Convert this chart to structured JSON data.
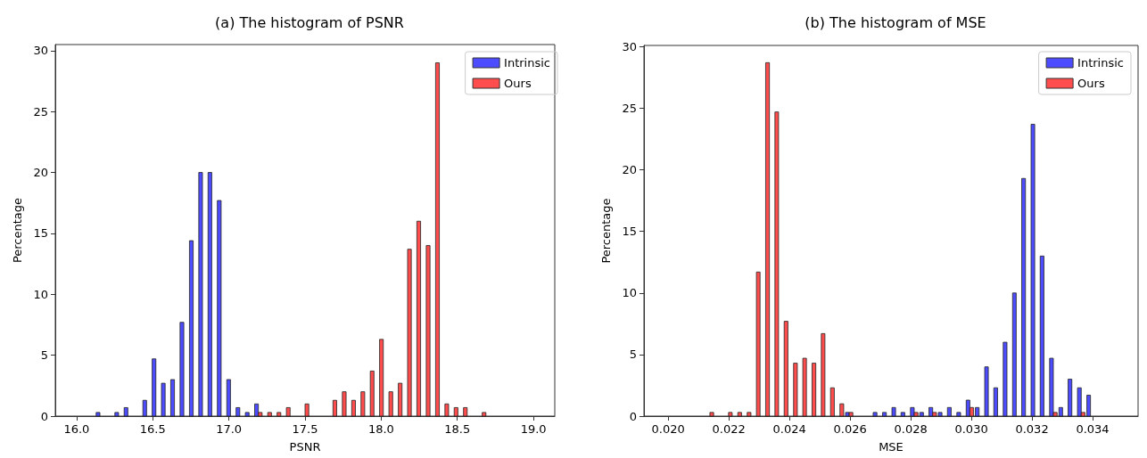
{
  "chart_data": [
    {
      "type": "histogram",
      "title": "(a) The histogram of PSNR",
      "xlabel": "PSNR",
      "ylabel": "Percentage",
      "bins": [
        16.0,
        16.061,
        16.122,
        16.184,
        16.245,
        16.306,
        16.367,
        16.429,
        16.49,
        16.551,
        16.612,
        16.673,
        16.735,
        16.796,
        16.857,
        16.918,
        16.98,
        17.041,
        17.102,
        17.163,
        17.224,
        17.286,
        17.347,
        17.408,
        17.469,
        17.531,
        17.592,
        17.653,
        17.714,
        17.776,
        17.837,
        17.898,
        17.959,
        18.02,
        18.082,
        18.143,
        18.204,
        18.265,
        18.327,
        18.388,
        18.449,
        18.51,
        18.571,
        18.633,
        18.694,
        18.755,
        18.816,
        18.878,
        18.939,
        19.0
      ],
      "series": [
        {
          "name": "Intrinsic",
          "color": "#4d4dff",
          "values": [
            0,
            0,
            0.3,
            0,
            0.3,
            0.7,
            0,
            1.3,
            4.7,
            2.7,
            3.0,
            7.7,
            14.4,
            20.0,
            20.0,
            17.7,
            3.0,
            0.7,
            0.3,
            1.0,
            0,
            0,
            0,
            0,
            0,
            0,
            0,
            0,
            0,
            0,
            0,
            0,
            0,
            0,
            0,
            0,
            0,
            0,
            0,
            0,
            0,
            0,
            0,
            0,
            0,
            0,
            0,
            0,
            0
          ]
        },
        {
          "name": "Ours",
          "color": "#ff4d4d",
          "values": [
            0,
            0,
            0,
            0,
            0,
            0,
            0,
            0,
            0,
            0,
            0,
            0,
            0,
            0,
            0,
            0,
            0,
            0,
            0,
            0.3,
            0.3,
            0.3,
            0.7,
            0,
            1.0,
            0,
            0,
            1.3,
            2.0,
            1.3,
            2.0,
            3.7,
            6.3,
            2.0,
            2.7,
            13.7,
            16.0,
            14.0,
            29.0,
            1.0,
            0.7,
            0.7,
            0,
            0.3,
            0,
            0,
            0,
            0,
            0
          ]
        }
      ],
      "xlim": [
        15.86,
        19.14
      ],
      "ylim": [
        0,
        30.5
      ],
      "xticks": [
        {
          "value": 16,
          "label": "16.0"
        },
        {
          "value": 16.5,
          "label": "16.5"
        },
        {
          "value": 17,
          "label": "17.0"
        },
        {
          "value": 17.5,
          "label": "17.5"
        },
        {
          "value": 18,
          "label": "18.0"
        },
        {
          "value": 18.5,
          "label": "18.5"
        },
        {
          "value": 19,
          "label": "19.0"
        }
      ],
      "yticks": [
        0,
        5,
        10,
        15,
        20,
        25,
        30
      ],
      "legend": "top right"
    },
    {
      "type": "histogram",
      "title": "(b) The histogram of MSE",
      "xlabel": "MSE",
      "ylabel": "Percentage",
      "bins": [
        0.02,
        0.02031,
        0.02061,
        0.02092,
        0.02122,
        0.02153,
        0.02184,
        0.02214,
        0.02245,
        0.02276,
        0.02306,
        0.02337,
        0.02367,
        0.02398,
        0.02429,
        0.02459,
        0.0249,
        0.0252,
        0.02551,
        0.02582,
        0.02612,
        0.02643,
        0.02673,
        0.02704,
        0.02735,
        0.02765,
        0.02796,
        0.02827,
        0.02857,
        0.02888,
        0.02918,
        0.02949,
        0.0298,
        0.0301,
        0.03041,
        0.03071,
        0.03102,
        0.03133,
        0.03163,
        0.03194,
        0.03224,
        0.03255,
        0.03286,
        0.03316,
        0.03347,
        0.03378,
        0.03408,
        0.03439,
        0.03469,
        0.035
      ],
      "series": [
        {
          "name": "Intrinsic",
          "color": "#4d4dff",
          "values": [
            0,
            0,
            0,
            0,
            0,
            0,
            0,
            0,
            0,
            0,
            0,
            0,
            0,
            0,
            0,
            0,
            0,
            0,
            0,
            0.3,
            0,
            0,
            0.3,
            0.3,
            0.7,
            0.3,
            0.7,
            0.3,
            0.7,
            0.3,
            0.7,
            0.3,
            1.3,
            0.7,
            4.0,
            2.3,
            6.0,
            10.0,
            19.3,
            23.7,
            13.0,
            4.7,
            0.7,
            3.0,
            2.3,
            1.7,
            0,
            0,
            0
          ]
        },
        {
          "name": "Ours",
          "color": "#ff4d4d",
          "values": [
            0,
            0,
            0,
            0,
            0.3,
            0,
            0.3,
            0.3,
            0.3,
            11.7,
            28.7,
            24.7,
            7.7,
            4.3,
            4.7,
            4.3,
            6.7,
            2.3,
            1.0,
            0.3,
            0,
            0,
            0,
            0,
            0,
            0,
            0.3,
            0,
            0.3,
            0,
            0,
            0,
            0.7,
            0,
            0,
            0,
            0,
            0,
            0,
            0,
            0,
            0.3,
            0,
            0,
            0.3,
            0,
            0,
            0,
            0
          ]
        }
      ],
      "xlim": [
        0.0192,
        0.0355
      ],
      "ylim": [
        0,
        30.1
      ],
      "xticks": [
        {
          "value": 0.02,
          "label": "0.020"
        },
        {
          "value": 0.022,
          "label": "0.022"
        },
        {
          "value": 0.024,
          "label": "0.024"
        },
        {
          "value": 0.026,
          "label": "0.026"
        },
        {
          "value": 0.028,
          "label": "0.028"
        },
        {
          "value": 0.03,
          "label": "0.030"
        },
        {
          "value": 0.032,
          "label": "0.032"
        },
        {
          "value": 0.034,
          "label": "0.034"
        }
      ],
      "yticks": [
        0,
        5,
        10,
        15,
        20,
        25,
        30
      ],
      "legend": "top right"
    }
  ]
}
